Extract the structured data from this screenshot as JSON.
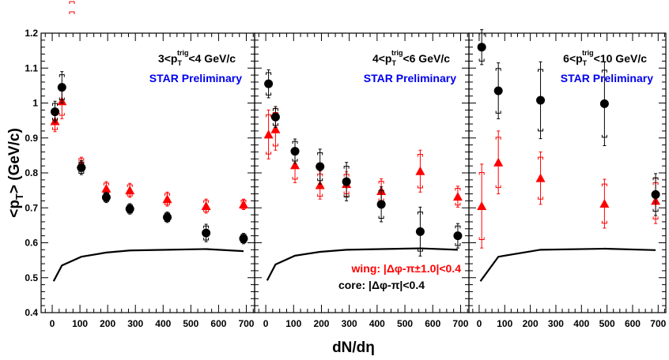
{
  "chart_data": {
    "type": "scatter",
    "title": "",
    "xlabel": "dN/dη",
    "ylabel": "<p_T> (GeV/c)",
    "ylabel_parts": {
      "pre": "<p",
      "sub": "T",
      "post": "> (GeV/c)"
    },
    "xlabel_parts": {
      "pre": "dN/d",
      "greek": "η"
    },
    "ylim": [
      0.4,
      1.2
    ],
    "yticks": [
      "0.4",
      "0.5",
      "0.6",
      "0.7",
      "0.8",
      "0.9",
      "1",
      "1.1",
      "1.2"
    ],
    "xticks": [
      "0",
      "100",
      "200",
      "300",
      "400",
      "500",
      "600",
      "700"
    ],
    "xlim": [
      -40,
      730
    ],
    "grid": false,
    "colors": {
      "wing": "#ff0000",
      "core": "#000000",
      "preliminary": "#0000ee",
      "baseline": "#000000"
    },
    "legend": {
      "placement": "bottom-right of middle panel",
      "wing": "wing: |Δφ-π±1.0|<0.4",
      "core": "core: |Δφ-π|<0.4"
    },
    "preliminary_label": "STAR Preliminary",
    "panels": [
      {
        "label_pre": "3<p",
        "label_sub": "T",
        "label_sup": "trig",
        "label_post": "<4 GeV/c",
        "series": [
          {
            "name": "core",
            "marker": "circle",
            "x": [
              10,
              35,
              105,
              195,
              280,
              415,
              555,
              690
            ],
            "y": [
              0.975,
              1.045,
              0.815,
              0.73,
              0.697,
              0.673,
              0.628,
              0.612
            ],
            "err": [
              0.03,
              0.045,
              0.02,
              0.015,
              0.015,
              0.015,
              0.025,
              0.015
            ]
          },
          {
            "name": "wing",
            "marker": "triangle",
            "x": [
              10,
              35,
              105,
              195,
              280,
              415,
              555,
              690
            ],
            "y": [
              0.948,
              1.005,
              0.825,
              0.755,
              0.75,
              0.725,
              0.705,
              0.71
            ],
            "err": [
              0.03,
              0.05,
              0.02,
              0.02,
              0.02,
              0.02,
              0.02,
              0.015
            ]
          }
        ],
        "baseline": {
          "x": [
            5,
            35,
            105,
            195,
            280,
            415,
            555,
            690
          ],
          "y": [
            0.49,
            0.535,
            0.56,
            0.572,
            0.578,
            0.58,
            0.582,
            0.576
          ]
        }
      },
      {
        "label_pre": "4<p",
        "label_sub": "T",
        "label_sup": "trig",
        "label_post": "<6 GeV/c",
        "series": [
          {
            "name": "core",
            "marker": "circle",
            "x": [
              10,
              35,
              105,
              195,
              290,
              415,
              555,
              690
            ],
            "y": [
              1.055,
              0.96,
              0.862,
              0.818,
              0.775,
              0.71,
              0.632,
              0.62
            ],
            "err": [
              0.04,
              0.03,
              0.035,
              0.05,
              0.055,
              0.05,
              0.07,
              0.035
            ]
          },
          {
            "name": "wing",
            "marker": "triangle",
            "x": [
              10,
              35,
              105,
              195,
              290,
              415,
              555,
              690
            ],
            "y": [
              0.91,
              0.925,
              0.822,
              0.765,
              0.768,
              0.748,
              0.805,
              0.732
            ],
            "err": [
              0.07,
              0.06,
              0.05,
              0.04,
              0.035,
              0.035,
              0.06,
              0.03
            ]
          }
        ],
        "baseline": {
          "x": [
            5,
            35,
            105,
            195,
            290,
            415,
            555,
            690
          ],
          "y": [
            0.492,
            0.538,
            0.563,
            0.574,
            0.58,
            0.582,
            0.584,
            0.58
          ]
        }
      },
      {
        "label_pre": "6<p",
        "label_sub": "T",
        "label_sup": "trig",
        "label_post": "<10 GeV/c",
        "series": [
          {
            "name": "core",
            "marker": "circle",
            "x": [
              10,
              75,
              240,
              490,
              690
            ],
            "y": [
              1.16,
              1.035,
              1.008,
              0.998,
              0.738
            ],
            "err": [
              0.05,
              0.08,
              0.11,
              0.12,
              0.06
            ]
          },
          {
            "name": "wing",
            "marker": "triangle",
            "x": [
              10,
              75,
              240,
              490,
              690
            ],
            "y": [
              0.705,
              0.83,
              0.785,
              0.712,
              0.72
            ],
            "err": [
              0.12,
              0.09,
              0.075,
              0.07,
              0.065
            ]
          }
        ],
        "baseline": {
          "x": [
            5,
            75,
            240,
            490,
            690
          ],
          "y": [
            0.49,
            0.56,
            0.58,
            0.583,
            0.579
          ]
        }
      }
    ]
  }
}
